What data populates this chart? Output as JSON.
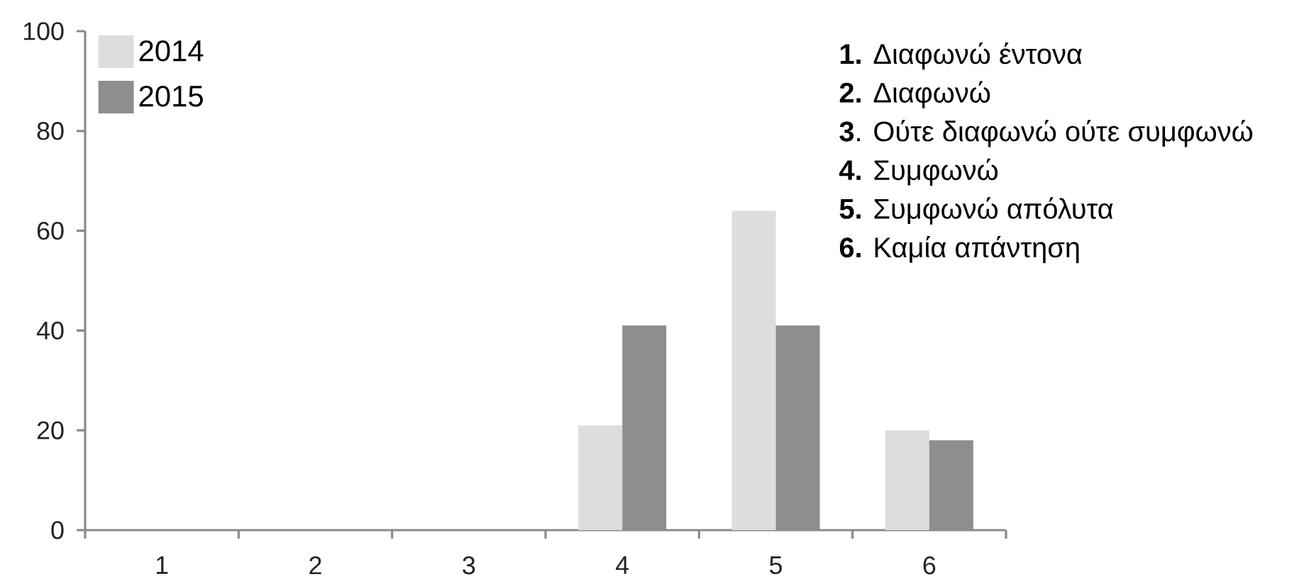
{
  "chart_data": {
    "type": "bar",
    "categories": [
      "1",
      "2",
      "3",
      "4",
      "5",
      "6"
    ],
    "series": [
      {
        "name": "2014",
        "color": "#dddddd",
        "values": [
          0,
          0,
          0,
          21,
          64,
          20
        ]
      },
      {
        "name": "2015",
        "color": "#8e8e8e",
        "values": [
          0,
          0,
          0,
          41,
          41,
          18
        ]
      }
    ],
    "ylim": [
      0,
      100
    ],
    "yticks": [
      0,
      20,
      40,
      60,
      80,
      100
    ],
    "legend": "top left",
    "annotations": [
      "**1.** Διαφωνώ έντονα",
      "**2.** Διαφωνώ",
      "**3**. Ούτε διαφωνώ ούτε συμφωνώ",
      "**4.** Συμφωνώ",
      "**5.** Συμφωνώ απόλυτα",
      "**6.** Καμία απάντηση"
    ]
  }
}
